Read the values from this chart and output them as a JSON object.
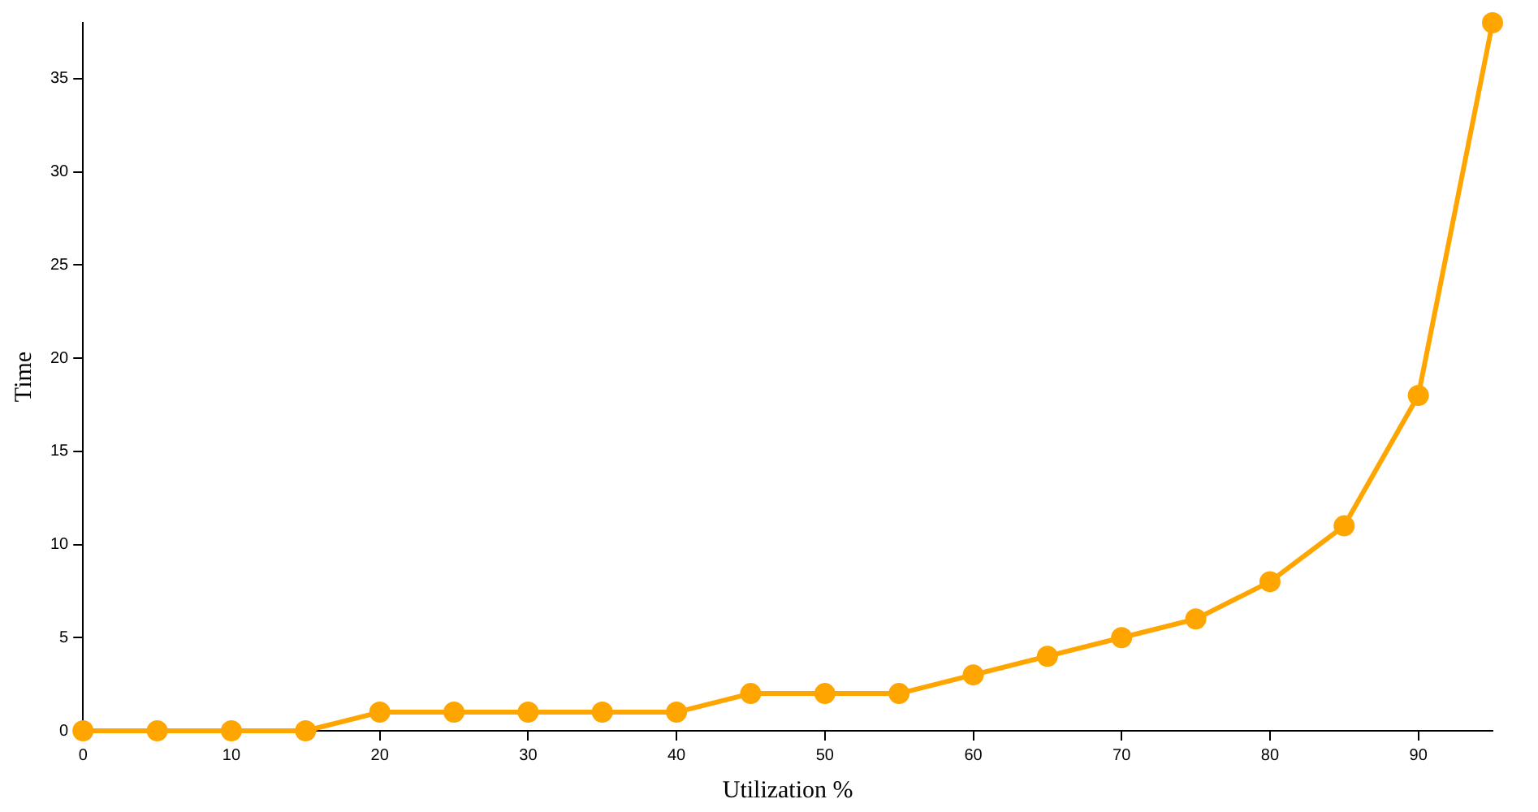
{
  "chart_data": {
    "type": "line",
    "xlabel": "Utilization %",
    "ylabel": "Time",
    "x": [
      0,
      5,
      10,
      15,
      20,
      25,
      30,
      35,
      40,
      45,
      50,
      55,
      60,
      65,
      70,
      75,
      80,
      85,
      90,
      95
    ],
    "series": [
      {
        "color": "#ffa500",
        "values": [
          0,
          0,
          0,
          0,
          1,
          1,
          1,
          1,
          1,
          2,
          2,
          2,
          3,
          4,
          5,
          6,
          8,
          11,
          18,
          38
        ]
      }
    ],
    "xlim": [
      0,
      95
    ],
    "xticks": [
      0,
      10,
      20,
      30,
      40,
      50,
      60,
      70,
      80,
      90
    ],
    "ylim": [
      0,
      38
    ],
    "yticks": [
      0,
      5,
      10,
      15,
      20,
      25,
      30,
      35
    ],
    "marker": "circle",
    "line_style": "solid"
  }
}
